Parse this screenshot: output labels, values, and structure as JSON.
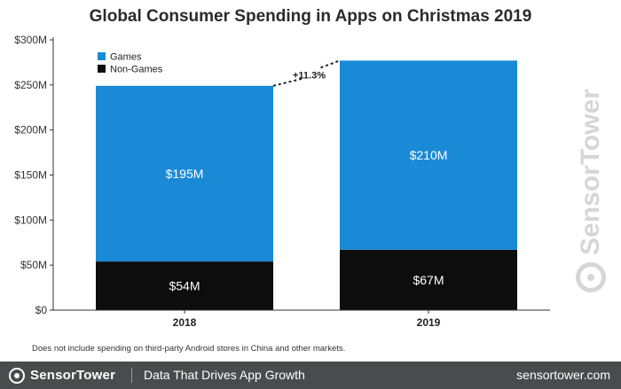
{
  "colors": {
    "games": "#1a8ad6",
    "non_games": "#0d0d0d",
    "axis": "#333333",
    "footer_bg": "#4a4b4d",
    "watermark": "#d6d6d6"
  },
  "chart_data": {
    "type": "bar",
    "stacked": true,
    "title": "Global Consumer Spending in Apps on Christmas 2019",
    "categories": [
      "2018",
      "2019"
    ],
    "series": [
      {
        "name": "Non-Games",
        "values": [
          54,
          67
        ],
        "labels": [
          "$54M",
          "$67M"
        ],
        "color": "#0d0d0d"
      },
      {
        "name": "Games",
        "values": [
          195,
          210
        ],
        "labels": [
          "$195M",
          "$210M"
        ],
        "color": "#1a8ad6"
      }
    ],
    "ylim": [
      0,
      300
    ],
    "yticks": [
      {
        "value": 0,
        "label": "$0"
      },
      {
        "value": 50,
        "label": "$50M"
      },
      {
        "value": 100,
        "label": "$100M"
      },
      {
        "value": 150,
        "label": "$150M"
      },
      {
        "value": 200,
        "label": "$200M"
      },
      {
        "value": 250,
        "label": "$250M"
      },
      {
        "value": 300,
        "label": "$300M"
      }
    ],
    "legend": {
      "placement": "top-left",
      "entries": [
        "Games",
        "Non-Games"
      ]
    },
    "annotation": {
      "text": "+11.3%"
    },
    "grid": false
  },
  "footnote": "Does not include spending on third-party Android stores in China and other markets.",
  "footer": {
    "brand": "SensorTower",
    "tagline": "Data That Drives App Growth",
    "url": "sensortower.com"
  },
  "watermark": {
    "text": "SensorTower"
  }
}
